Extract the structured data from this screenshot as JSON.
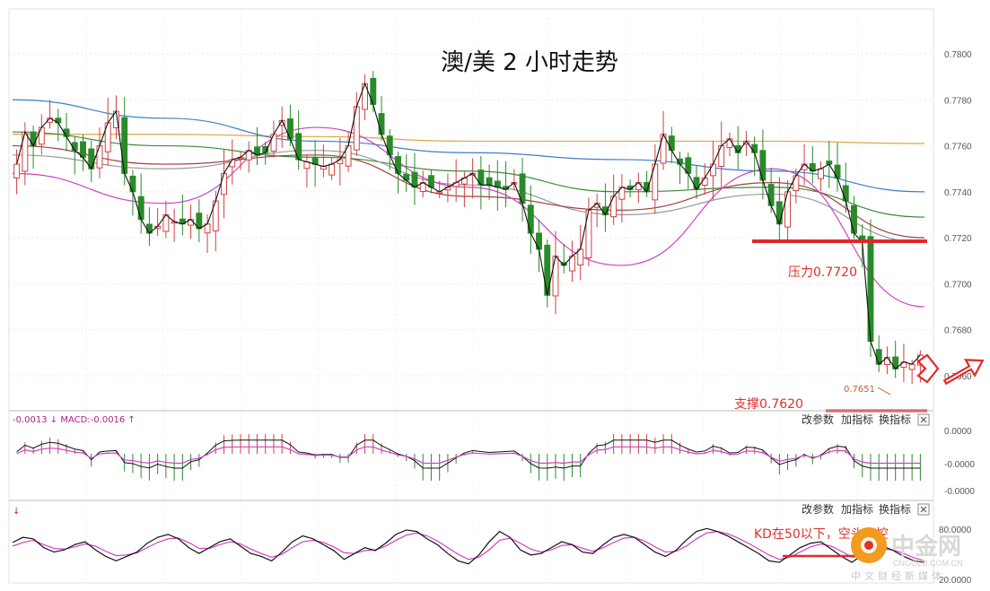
{
  "chart_data": [
    {
      "type": "candlestick",
      "title": "澳/美 2 小时走势",
      "ylim": [
        0.7655,
        0.7795
      ],
      "y_ticks": [
        "0.7800",
        "0.7780",
        "0.7760",
        "0.7740",
        "0.7720",
        "0.7700",
        "0.7680",
        "0.7660"
      ],
      "close_series": [
        0.7752,
        0.7766,
        0.776,
        0.7768,
        0.7772,
        0.777,
        0.7764,
        0.7758,
        0.7755,
        0.775,
        0.776,
        0.777,
        0.7775,
        0.7748,
        0.774,
        0.7728,
        0.7722,
        0.7725,
        0.773,
        0.7727,
        0.7726,
        0.7728,
        0.7724,
        0.7726,
        0.7736,
        0.7748,
        0.7754,
        0.7755,
        0.7758,
        0.7756,
        0.7757,
        0.7765,
        0.7771,
        0.7763,
        0.7754,
        0.7753,
        0.7752,
        0.7751,
        0.7752,
        0.7754,
        0.776,
        0.7777,
        0.7787,
        0.7778,
        0.7765,
        0.7756,
        0.7748,
        0.7745,
        0.7742,
        0.7744,
        0.7742,
        0.774,
        0.7742,
        0.7744,
        0.7746,
        0.7748,
        0.7743,
        0.7743,
        0.7742,
        0.7741,
        0.7744,
        0.7735,
        0.7722,
        0.7715,
        0.7695,
        0.7712,
        0.7708,
        0.7712,
        0.7715,
        0.7732,
        0.7735,
        0.773,
        0.7738,
        0.7742,
        0.7741,
        0.7744,
        0.774,
        0.7752,
        0.7765,
        0.7758,
        0.7752,
        0.7748,
        0.7741,
        0.7746,
        0.7752,
        0.776,
        0.7763,
        0.7757,
        0.7762,
        0.7757,
        0.7745,
        0.7734,
        0.7726,
        0.774,
        0.7747,
        0.7752,
        0.7749,
        0.775,
        0.7752,
        0.7746,
        0.7736,
        0.7722,
        0.7718,
        0.7675,
        0.7665,
        0.7668,
        0.7663,
        0.7666,
        0.7665,
        0.7669
      ],
      "moving_averages": [
        {
          "color": "#e0a640",
          "values": [
            0.7765,
            0.7765,
            0.7764,
            0.7762,
            0.7762,
            0.7762,
            0.7761
          ]
        },
        {
          "color": "#3a7fd0",
          "values": [
            0.778,
            0.7772,
            0.7762,
            0.7757,
            0.7754,
            0.7749,
            0.774
          ]
        },
        {
          "color": "#3c8c3c",
          "values": [
            0.7766,
            0.776,
            0.7755,
            0.7749,
            0.774,
            0.7742,
            0.7729
          ]
        },
        {
          "color": "#999999",
          "values": [
            0.7756,
            0.775,
            0.7758,
            0.7743,
            0.773,
            0.7739,
            0.7718
          ]
        },
        {
          "color": "#a04040",
          "values": [
            0.776,
            0.7752,
            0.7756,
            0.7738,
            0.7732,
            0.7744,
            0.772
          ]
        },
        {
          "color": "#d040c8",
          "values": [
            0.7748,
            0.7735,
            0.7768,
            0.7742,
            0.7708,
            0.775,
            0.769
          ]
        }
      ],
      "annotations": {
        "resistance_label": "压力0.7720",
        "resistance_level": 0.772,
        "support_label": "支撑0.7620",
        "low_label": "0.7651"
      }
    },
    {
      "type": "bar",
      "header": "-0.0013 ↓ MACD:-0.0016 ↑",
      "y_ticks": [
        "0.0000",
        "-0.0000",
        "-0.0000"
      ],
      "buttons": [
        "改参数",
        "加指标",
        "换指标"
      ],
      "close_icon": "close-icon"
    },
    {
      "type": "line",
      "header": "↓",
      "y_ticks": [
        "80.0000",
        "20.0000"
      ],
      "buttons": [
        "改参数",
        "加指标",
        "换指标"
      ],
      "annotation": "KD在50以下，空头主控",
      "k_series": [
        55,
        62,
        60,
        48,
        42,
        45,
        52,
        56,
        45,
        36,
        30,
        36,
        42,
        54,
        62,
        66,
        60,
        48,
        40,
        48,
        56,
        60,
        50,
        40,
        36,
        30,
        42,
        56,
        64,
        60,
        52,
        44,
        32,
        40,
        48,
        44,
        54,
        66,
        72,
        70,
        60,
        52,
        40,
        30,
        26,
        38,
        56,
        70,
        62,
        45,
        38,
        40,
        48,
        56,
        52,
        42,
        40,
        52,
        62,
        66,
        62,
        52,
        42,
        36,
        44,
        58,
        70,
        74,
        70,
        64,
        56,
        48,
        40,
        30,
        28,
        38,
        48,
        54,
        56,
        46,
        36,
        28,
        38,
        46,
        50,
        44,
        36,
        30,
        28
      ],
      "d_series": [
        50,
        55,
        58,
        52,
        47,
        46,
        49,
        53,
        50,
        43,
        37,
        38,
        41,
        48,
        55,
        60,
        61,
        55,
        47,
        47,
        52,
        56,
        53,
        46,
        40,
        35,
        39,
        48,
        56,
        58,
        55,
        49,
        41,
        40,
        44,
        45,
        50,
        58,
        65,
        68,
        64,
        57,
        48,
        39,
        32,
        35,
        45,
        58,
        61,
        54,
        46,
        42,
        45,
        51,
        52,
        47,
        43,
        48,
        55,
        61,
        62,
        57,
        49,
        42,
        43,
        50,
        60,
        68,
        70,
        67,
        61,
        54,
        46,
        38,
        32,
        35,
        42,
        49,
        53,
        50,
        43,
        35,
        37,
        42,
        46,
        45,
        40,
        34,
        30
      ]
    }
  ],
  "watermark": {
    "brand": "中金网",
    "domain": "CNGOLD.COM.CN",
    "tagline": "中文财经新媒体"
  }
}
